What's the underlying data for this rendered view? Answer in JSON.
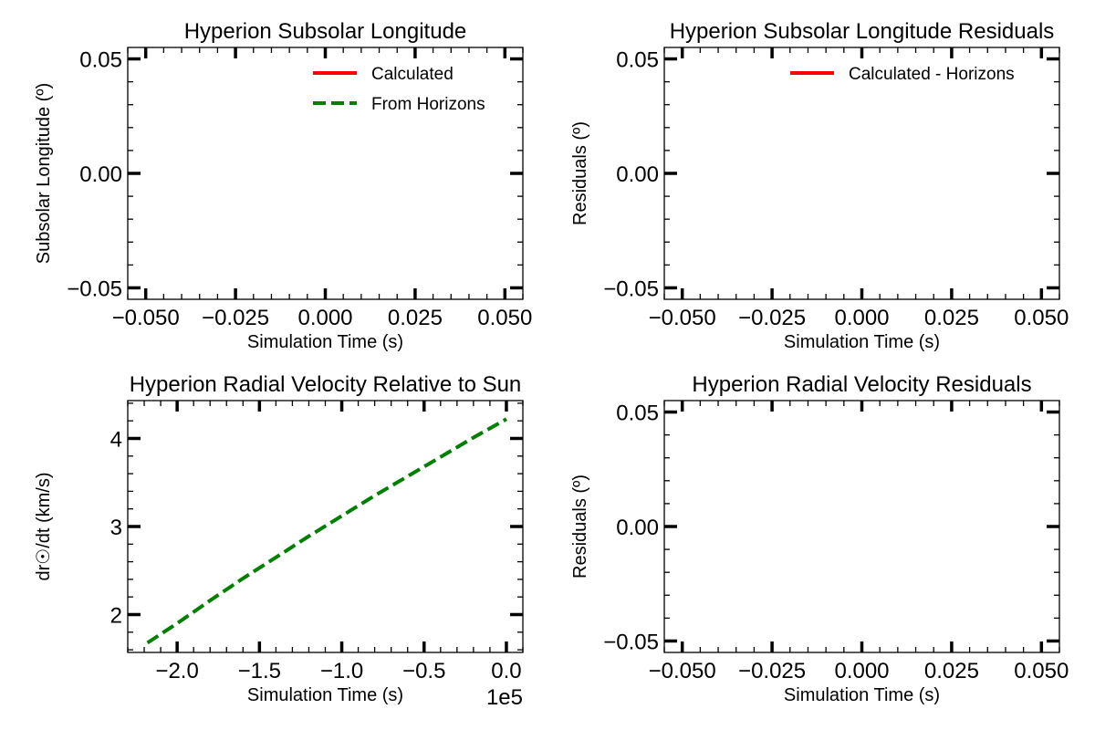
{
  "chart_data": [
    {
      "type": "line",
      "title": "Hyperion Subsolar Longitude",
      "xlabel": "Simulation Time (s)",
      "ylabel": "Subsolar Longitude (º)",
      "xlim": [
        -0.055,
        0.055
      ],
      "ylim": [
        -0.055,
        0.055
      ],
      "xticks": [
        -0.05,
        -0.025,
        0.0,
        0.025,
        0.05
      ],
      "xtick_labels": [
        "−0.050",
        "−0.025",
        "0.000",
        "0.025",
        "0.050"
      ],
      "yticks": [
        -0.05,
        0.0,
        0.05
      ],
      "ytick_labels": [
        "−0.05",
        "0.00",
        "0.05"
      ],
      "x_offset_text": "",
      "legend": {
        "placement": "top-right",
        "entries": [
          {
            "label": "Calculated",
            "color": "#ff0000",
            "dash": "solid"
          },
          {
            "label": "From Horizons",
            "color": "#008000",
            "dash": "dashed"
          }
        ]
      },
      "series": []
    },
    {
      "type": "line",
      "title": "Hyperion Subsolar Longitude Residuals",
      "xlabel": "Simulation Time (s)",
      "ylabel": "Residuals (º)",
      "xlim": [
        -0.055,
        0.055
      ],
      "ylim": [
        -0.055,
        0.055
      ],
      "xticks": [
        -0.05,
        -0.025,
        0.0,
        0.025,
        0.05
      ],
      "xtick_labels": [
        "−0.050",
        "−0.025",
        "0.000",
        "0.025",
        "0.050"
      ],
      "yticks": [
        -0.05,
        0.0,
        0.05
      ],
      "ytick_labels": [
        "−0.05",
        "0.00",
        "0.05"
      ],
      "x_offset_text": "",
      "legend": {
        "placement": "top-right",
        "entries": [
          {
            "label": "Calculated - Horizons",
            "color": "#ff0000",
            "dash": "solid"
          }
        ]
      },
      "series": []
    },
    {
      "type": "line",
      "title": "Hyperion Radial Velocity Relative to Sun",
      "xlabel": "Simulation Time (s)",
      "ylabel": "dr☉/dt (km/s)",
      "xlim": [
        -2.3,
        0.1
      ],
      "ylim": [
        1.57,
        4.43
      ],
      "xticks": [
        -2.0,
        -1.5,
        -1.0,
        -0.5,
        0.0
      ],
      "xtick_labels": [
        "−2.0",
        "−1.5",
        "−1.0",
        "−0.5",
        "0.0"
      ],
      "yticks": [
        2,
        3,
        4
      ],
      "ytick_labels": [
        "2",
        "3",
        "4"
      ],
      "x_offset_text": "1e5",
      "legend": null,
      "series": [
        {
          "color": "#008000",
          "dash": "dashed",
          "x": [
            -2.18,
            -2.0,
            -1.8,
            -1.6,
            -1.4,
            -1.2,
            -1.0,
            -0.8,
            -0.6,
            -0.4,
            -0.2,
            0.0
          ],
          "y": [
            1.68,
            1.9,
            2.16,
            2.41,
            2.65,
            2.89,
            3.12,
            3.35,
            3.57,
            3.79,
            4.01,
            4.22
          ]
        }
      ]
    },
    {
      "type": "line",
      "title": "Hyperion Radial Velocity Residuals",
      "xlabel": "Simulation Time (s)",
      "ylabel": "Residuals (º)",
      "xlim": [
        -0.055,
        0.055
      ],
      "ylim": [
        -0.055,
        0.055
      ],
      "xticks": [
        -0.05,
        -0.025,
        0.0,
        0.025,
        0.05
      ],
      "xtick_labels": [
        "−0.050",
        "−0.025",
        "0.000",
        "0.025",
        "0.050"
      ],
      "yticks": [
        -0.05,
        0.0,
        0.05
      ],
      "ytick_labels": [
        "−0.05",
        "0.00",
        "0.05"
      ],
      "x_offset_text": "",
      "legend": null,
      "series": []
    }
  ]
}
